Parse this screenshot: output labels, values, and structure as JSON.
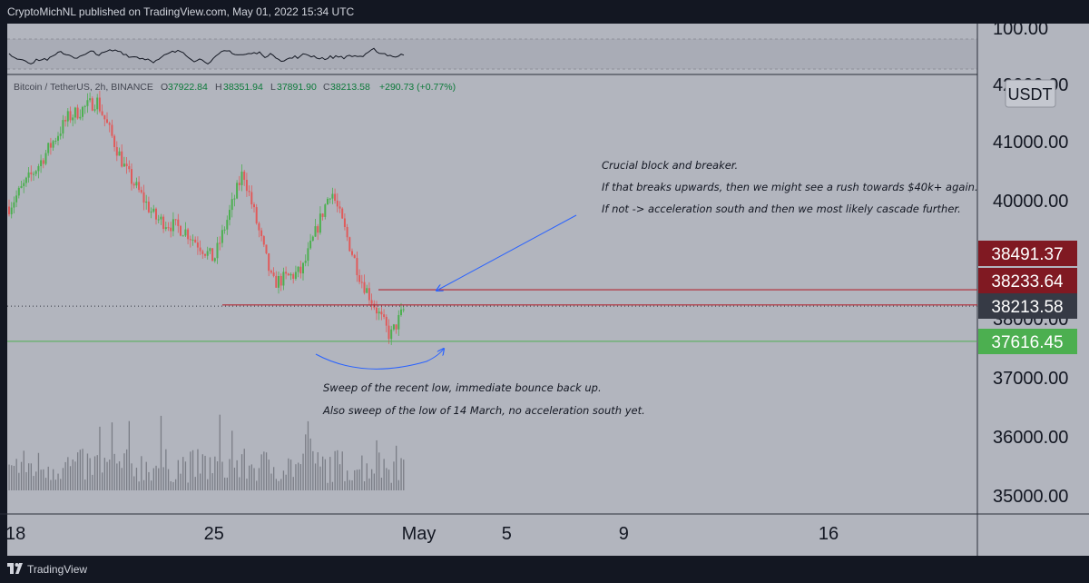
{
  "header": {
    "published": "CryptoMichNL published on TradingView.com, May 01, 2022 15:34 UTC"
  },
  "footer": {
    "brand": "TradingView"
  },
  "indicator_pane": {
    "axis_label": "100.00"
  },
  "legend": {
    "symbol": "Bitcoin / TetherUS, 2h, BINANCE",
    "ohlc": [
      {
        "key": "O",
        "value": "37922.84"
      },
      {
        "key": "H",
        "value": "38351.94"
      },
      {
        "key": "L",
        "value": "37891.90"
      },
      {
        "key": "C",
        "value": "38213.58"
      }
    ],
    "change": "+290.73 (+0.77%)"
  },
  "price_axis": {
    "currency": "USDT",
    "top_partial_label": "42000.00",
    "labels": [
      "41000.00",
      "40000.00",
      "38000.00",
      "37000.00",
      "36000.00",
      "35000.00"
    ]
  },
  "price_tags": [
    {
      "value": "38491.37",
      "color": "#801922"
    },
    {
      "value": "38233.64",
      "color": "#801922"
    },
    {
      "value": "38213.58",
      "color": "#363a45"
    },
    {
      "value": "37616.45",
      "color": "#4caf50"
    }
  ],
  "time_axis": {
    "labels": [
      "18",
      "25",
      "May",
      "5",
      "9",
      "16"
    ]
  },
  "annotations": {
    "block": [
      "Crucial block and breaker.",
      "If that breaks upwards, then we might see a rush towards $40k+ again.",
      "If not -> acceleration south and then we most likely cascade further."
    ],
    "sweep": [
      "Sweep of the recent low, immediate bounce back up.",
      "Also sweep of the low of 14 March, no acceleration south yet."
    ]
  },
  "colors": {
    "up": "#4caf50",
    "down": "#e05a5a",
    "background": "#b2b5be",
    "frame": "#131722",
    "block_line": "#b22833",
    "support_line": "#4caf50",
    "arrow": "#2962ff"
  },
  "chart_data": {
    "type": "candlestick",
    "symbol": "Bitcoin / TetherUS",
    "timeframe": "2h",
    "exchange": "BINANCE",
    "x_ticks": [
      "18",
      "25",
      "May",
      "5",
      "9",
      "16"
    ],
    "y_ticks": [
      35000,
      36000,
      37000,
      38000,
      40000,
      41000
    ],
    "ylim": [
      34800,
      42100
    ],
    "lines": [
      {
        "value": 38491.37
      },
      {
        "value": 38233.64
      },
      {
        "value": 37616.45
      }
    ],
    "last_close": 38213.58,
    "price_path": [
      {
        "date": "2022-04-18",
        "price": 39900
      },
      {
        "date": "2022-04-19",
        "price": 40600
      },
      {
        "date": "2022-04-20",
        "price": 41400
      },
      {
        "date": "2022-04-21",
        "price": 41700
      },
      {
        "date": "2022-04-22",
        "price": 40500
      },
      {
        "date": "2022-04-23",
        "price": 39700
      },
      {
        "date": "2022-04-24",
        "price": 39500
      },
      {
        "date": "2022-04-25",
        "price": 39000
      },
      {
        "date": "2022-04-26",
        "price": 40500
      },
      {
        "date": "2022-04-27",
        "price": 38600
      },
      {
        "date": "2022-04-28",
        "price": 38800
      },
      {
        "date": "2022-04-29",
        "price": 40200
      },
      {
        "date": "2022-04-30",
        "price": 38700
      },
      {
        "date": "2022-05-01",
        "price": 37700
      },
      {
        "date": "2022-05-01",
        "price": 38213.58
      }
    ],
    "rsi_range": [
      0,
      100
    ]
  }
}
